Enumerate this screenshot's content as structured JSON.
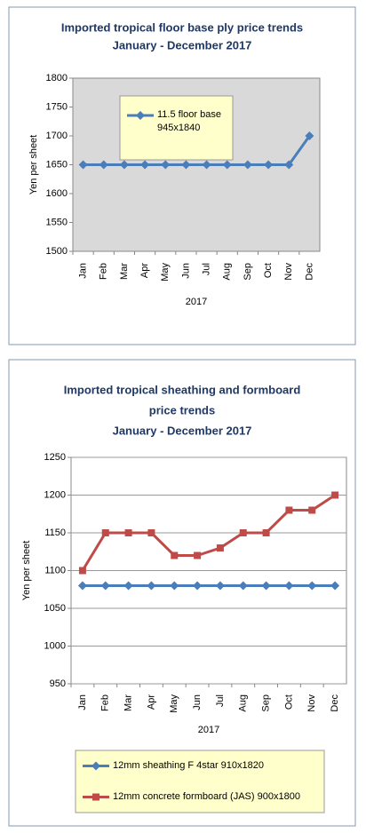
{
  "chart_data": [
    {
      "type": "line",
      "title": [
        "Imported tropical floor base ply price trends",
        "January - December 2017"
      ],
      "x_label": "2017",
      "y_label": "Yen per sheet",
      "categories": [
        "Jan",
        "Feb",
        "Mar",
        "Apr",
        "May",
        "Jun",
        "Jul",
        "Aug",
        "Sep",
        "Oct",
        "Nov",
        "Dec"
      ],
      "series": [
        {
          "name": "11.5 floor base 945x1840",
          "color": "#4a7ebb",
          "marker": "diamond",
          "values": [
            1650,
            1650,
            1650,
            1650,
            1650,
            1650,
            1650,
            1650,
            1650,
            1650,
            1650,
            1700
          ]
        }
      ],
      "ylim": [
        1500,
        1800
      ],
      "yticks": [
        1500,
        1550,
        1600,
        1650,
        1700,
        1750,
        1800
      ],
      "grid": false,
      "plot_background": "#d9d9d9",
      "legend": "inside-top-left"
    },
    {
      "type": "line",
      "title": [
        "Imported tropical sheathing and formboard",
        "price trends",
        "January - December 2017"
      ],
      "x_label": "2017",
      "y_label": "Yen per sheet",
      "categories": [
        "Jan",
        "Feb",
        "Mar",
        "Apr",
        "May",
        "Jun",
        "Jul",
        "Aug",
        "Sep",
        "Oct",
        "Nov",
        "Dec"
      ],
      "series": [
        {
          "name": "12mm sheathing F 4star 910x1820",
          "color": "#4a7ebb",
          "marker": "diamond",
          "values": [
            1080,
            1080,
            1080,
            1080,
            1080,
            1080,
            1080,
            1080,
            1080,
            1080,
            1080,
            1080
          ]
        },
        {
          "name": "12mm concrete formboard (JAS) 900x1800",
          "color": "#be4b48",
          "marker": "square",
          "values": [
            1100,
            1150,
            1150,
            1150,
            1120,
            1120,
            1130,
            1150,
            1150,
            1180,
            1180,
            1200
          ]
        }
      ],
      "ylim": [
        950,
        1250
      ],
      "yticks": [
        950,
        1000,
        1050,
        1100,
        1150,
        1200,
        1250
      ],
      "grid": true,
      "plot_background": "#ffffff",
      "legend": "bottom"
    }
  ]
}
